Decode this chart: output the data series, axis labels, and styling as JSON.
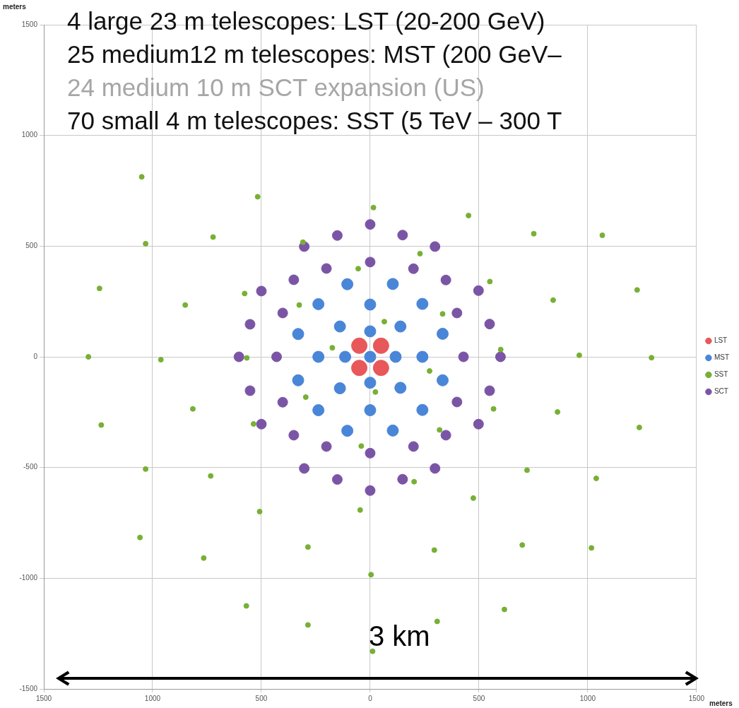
{
  "chart_data": {
    "type": "scatter",
    "xlabel": "meters",
    "ylabel": "meters",
    "annotations": [
      "4   large 23 m telescopes:  LST (20-200 GeV)",
      "25 medium12 m telescopes: MST (200 GeV–",
      "24 medium 10 m SCT expansion (US)",
      "70 small 4 m telescopes: SST (5 TeV – 300 T",
      "3 km"
    ],
    "xlim": [
      -1500,
      1500
    ],
    "xticks": [
      {
        "value": -1500,
        "label": "1500"
      },
      {
        "value": -1000,
        "label": "1000"
      },
      {
        "value": -500,
        "label": "500"
      },
      0,
      500,
      1000,
      1500
    ],
    "ylim": [
      -1500,
      1500
    ],
    "yticks": [
      -1500,
      -1000,
      -500,
      0,
      500,
      1000,
      1500
    ],
    "grid": true,
    "legend": "right",
    "marker": "circle",
    "series": [
      {
        "name": "LST",
        "color": "#e8575a",
        "x": [
          -50,
          50,
          -50,
          50
        ],
        "values": [
          50,
          50,
          -50,
          -50
        ]
      },
      {
        "name": "MST",
        "color": "#4a86d8",
        "x": [
          -105,
          -238,
          0,
          -139,
          0,
          -331,
          -238,
          -115,
          0,
          -331,
          -139,
          0,
          -238,
          0,
          -105,
          104,
          240,
          139,
          333,
          117,
          240,
          333,
          139,
          240,
          104
        ],
        "values": [
          328,
          238,
          236,
          137,
          115,
          103,
          0,
          0,
          0,
          -106,
          -142,
          -117,
          -241,
          -241,
          -334,
          329,
          239,
          137,
          104,
          0,
          0,
          -106,
          -140,
          -240,
          -333
        ]
      },
      {
        "name": "SST",
        "color": "#78b035",
        "x": [
          -1050,
          -517,
          15,
          -722,
          -1032,
          -309,
          -55,
          -1244,
          -577,
          -850,
          -326,
          -174,
          -1295,
          -962,
          -567,
          24,
          -296,
          -815,
          -1236,
          -536,
          -41,
          -1032,
          -733,
          -508,
          -46,
          -1058,
          -765,
          -286,
          4,
          -569,
          -286,
          11,
          452,
          752,
          1067,
          229,
          550,
          1227,
          841,
          333,
          65,
          600,
          961,
          1293,
          273,
          567,
          861,
          1237,
          319,
          202,
          721,
          1039,
          474,
          699,
          1017,
          295,
          617,
          308
        ],
        "values": [
          813,
          723,
          674,
          541,
          511,
          518,
          398,
          309,
          286,
          234,
          234,
          41,
          0,
          -13,
          -5,
          -159,
          -182,
          -235,
          -308,
          -303,
          -403,
          -507,
          -538,
          -699,
          -692,
          -816,
          -909,
          -859,
          -984,
          -1125,
          -1211,
          -1330,
          638,
          556,
          549,
          466,
          340,
          302,
          256,
          194,
          159,
          33,
          7,
          -4,
          -64,
          -235,
          -249,
          -319,
          -330,
          -564,
          -512,
          -549,
          -638,
          -850,
          -863,
          -873,
          -1141,
          -1195
        ]
      },
      {
        "name": "SCT",
        "color": "#7b55a5",
        "x": [
          0,
          -151,
          -303,
          0,
          -201,
          -351,
          -500,
          -402,
          -552,
          -603,
          -430,
          -552,
          -402,
          -500,
          -351,
          -201,
          -303,
          0,
          -151,
          0,
          149,
          298,
          199,
          348,
          498,
          399,
          549,
          429,
          599,
          549,
          399,
          498,
          348,
          199,
          298,
          149
        ],
        "values": [
          598,
          548,
          498,
          428,
          399,
          348,
          297,
          198,
          147,
          0,
          0,
          -153,
          -205,
          -304,
          -354,
          -405,
          -504,
          -435,
          -554,
          -604,
          550,
          498,
          398,
          347,
          299,
          198,
          148,
          0,
          0,
          -153,
          -204,
          -304,
          -354,
          -405,
          -504,
          -553
        ]
      }
    ]
  }
}
